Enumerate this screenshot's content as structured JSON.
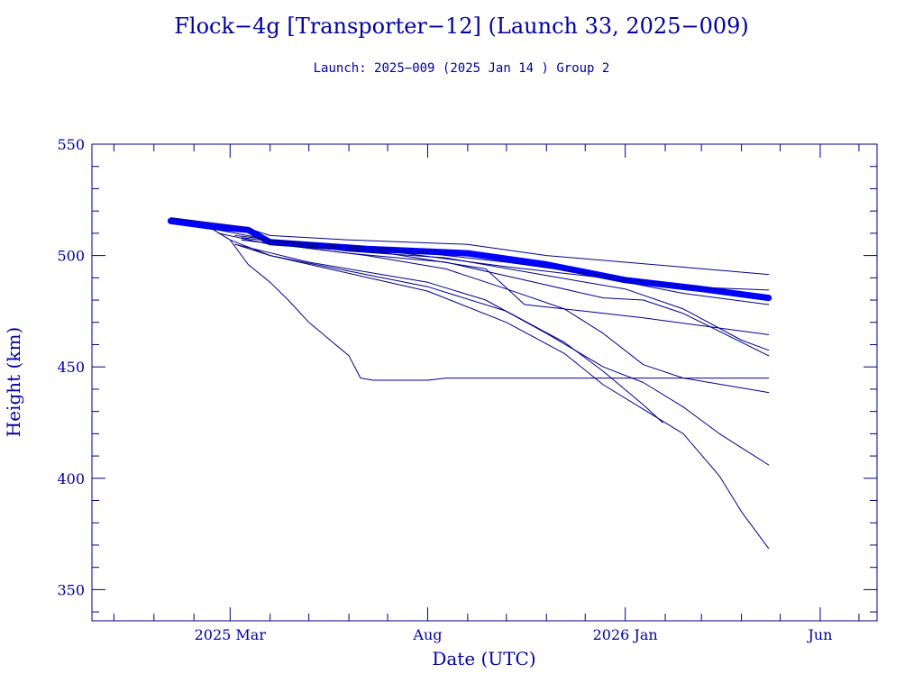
{
  "colors": {
    "axis": "#000080",
    "text": "#0000a0",
    "series": "#00008b",
    "main_band": "#0000ff"
  },
  "chart_data": {
    "type": "line",
    "title": "Flock−4g [Transporter−12] (Launch 33, 2025−009)",
    "subtitle": "Launch: 2025−009  (2025 Jan 14 )  Group 2",
    "xlabel": "Date (UTC)",
    "ylabel": "Height (km)",
    "x_scale": "date",
    "xlim": [
      "2024-11-14",
      "2026-07-15"
    ],
    "ylim": [
      336,
      550
    ],
    "x_ticks": [
      {
        "date": "2025-03-01",
        "label": "2025 Mar"
      },
      {
        "date": "2025-08-01",
        "label": "Aug"
      },
      {
        "date": "2026-01-01",
        "label": "2026 Jan"
      },
      {
        "date": "2026-06-01",
        "label": "Jun"
      }
    ],
    "x_minor_ticks": [
      "2024-12-01",
      "2025-01-01",
      "2025-02-01",
      "2025-04-01",
      "2025-05-01",
      "2025-06-01",
      "2025-07-01",
      "2025-09-01",
      "2025-10-01",
      "2025-11-01",
      "2025-12-01",
      "2026-02-01",
      "2026-03-01",
      "2026-04-01",
      "2026-05-01",
      "2026-07-01"
    ],
    "y_ticks": [
      350,
      400,
      450,
      500,
      550
    ],
    "y_minor_step": 10,
    "grid": false,
    "series": [
      {
        "style": "band",
        "points": [
          [
            "2025-01-14",
            515.5
          ],
          [
            "2025-02-15",
            513
          ],
          [
            "2025-03-15",
            511.5
          ],
          [
            "2025-04-01",
            506
          ],
          [
            "2025-06-15",
            503
          ],
          [
            "2025-09-01",
            501
          ],
          [
            "2025-11-01",
            496
          ],
          [
            "2026-01-01",
            489
          ],
          [
            "2026-03-01",
            485
          ],
          [
            "2026-04-22",
            481
          ]
        ]
      },
      {
        "points": [
          [
            "2025-01-14",
            517
          ],
          [
            "2025-03-10",
            513
          ],
          [
            "2025-04-01",
            509
          ],
          [
            "2025-06-01",
            507
          ],
          [
            "2025-09-01",
            505
          ],
          [
            "2025-11-01",
            500
          ],
          [
            "2026-01-01",
            497
          ],
          [
            "2026-04-22",
            491.5
          ]
        ]
      },
      {
        "points": [
          [
            "2025-02-15",
            512
          ],
          [
            "2025-04-01",
            507
          ],
          [
            "2025-07-01",
            503
          ],
          [
            "2025-10-01",
            497
          ],
          [
            "2025-12-15",
            491
          ],
          [
            "2026-02-15",
            486
          ],
          [
            "2026-04-22",
            484.5
          ]
        ]
      },
      {
        "points": [
          [
            "2025-03-05",
            509
          ],
          [
            "2025-05-01",
            505
          ],
          [
            "2025-07-01",
            502
          ],
          [
            "2025-10-01",
            495
          ],
          [
            "2025-12-15",
            490
          ],
          [
            "2026-02-15",
            483
          ],
          [
            "2026-04-22",
            478
          ]
        ]
      },
      {
        "points": [
          [
            "2025-02-20",
            510
          ],
          [
            "2025-04-01",
            505
          ],
          [
            "2025-07-01",
            501
          ],
          [
            "2025-09-15",
            494
          ],
          [
            "2025-10-15",
            478
          ],
          [
            "2025-12-01",
            475
          ],
          [
            "2026-01-15",
            472
          ],
          [
            "2026-04-22",
            464.5
          ]
        ]
      },
      {
        "points": [
          [
            "2025-03-10",
            508
          ],
          [
            "2025-06-01",
            502
          ],
          [
            "2025-08-15",
            499
          ],
          [
            "2025-11-01",
            491
          ],
          [
            "2026-01-01",
            485
          ],
          [
            "2026-02-15",
            476
          ],
          [
            "2026-04-01",
            462
          ],
          [
            "2026-04-22",
            457.5
          ]
        ]
      },
      {
        "points": [
          [
            "2025-03-10",
            507
          ],
          [
            "2025-06-01",
            501
          ],
          [
            "2025-08-15",
            497
          ],
          [
            "2025-10-15",
            489
          ],
          [
            "2025-12-15",
            481
          ],
          [
            "2026-01-15",
            480
          ],
          [
            "2026-02-15",
            474
          ],
          [
            "2026-04-22",
            455
          ]
        ]
      },
      {
        "points": [
          [
            "2025-03-10",
            507
          ],
          [
            "2025-06-15",
            500
          ],
          [
            "2025-08-15",
            494
          ],
          [
            "2025-10-01",
            485
          ],
          [
            "2025-11-15",
            476
          ],
          [
            "2025-12-15",
            465
          ],
          [
            "2026-01-15",
            451
          ],
          [
            "2026-02-15",
            445
          ],
          [
            "2026-04-22",
            438.5
          ]
        ]
      },
      {
        "points": [
          [
            "2025-03-05",
            505
          ],
          [
            "2025-05-01",
            497
          ],
          [
            "2025-08-01",
            488
          ],
          [
            "2025-09-15",
            480
          ],
          [
            "2025-11-01",
            465
          ],
          [
            "2025-12-15",
            450
          ],
          [
            "2026-01-15",
            443
          ],
          [
            "2026-02-15",
            432
          ],
          [
            "2026-03-15",
            420
          ],
          [
            "2026-04-22",
            406
          ]
        ]
      },
      {
        "points": [
          [
            "2025-03-01",
            507
          ],
          [
            "2025-04-01",
            500
          ],
          [
            "2025-06-01",
            493
          ],
          [
            "2025-08-01",
            486
          ],
          [
            "2025-10-01",
            475
          ],
          [
            "2025-11-15",
            461
          ],
          [
            "2025-12-15",
            448
          ],
          [
            "2026-01-15",
            433
          ],
          [
            "2026-01-30",
            425
          ]
        ]
      },
      {
        "points": [
          [
            "2025-03-05",
            505
          ],
          [
            "2025-04-01",
            500
          ],
          [
            "2025-06-01",
            492
          ],
          [
            "2025-08-01",
            484
          ],
          [
            "2025-10-01",
            470
          ],
          [
            "2025-11-15",
            456
          ],
          [
            "2025-12-15",
            442
          ],
          [
            "2026-01-15",
            431
          ],
          [
            "2026-02-15",
            420
          ],
          [
            "2026-03-15",
            401
          ],
          [
            "2026-04-01",
            385
          ],
          [
            "2026-04-22",
            368.5
          ]
        ]
      },
      {
        "points": [
          [
            "2025-02-15",
            512
          ],
          [
            "2025-03-01",
            507
          ],
          [
            "2025-03-15",
            496
          ],
          [
            "2025-04-01",
            488
          ],
          [
            "2025-04-15",
            480
          ],
          [
            "2025-05-01",
            470
          ],
          [
            "2025-06-01",
            455
          ],
          [
            "2025-06-10",
            445
          ],
          [
            "2025-06-20",
            444
          ],
          [
            "2025-08-01",
            444
          ],
          [
            "2025-08-15",
            445
          ],
          [
            "2026-04-22",
            445
          ]
        ]
      }
    ]
  }
}
